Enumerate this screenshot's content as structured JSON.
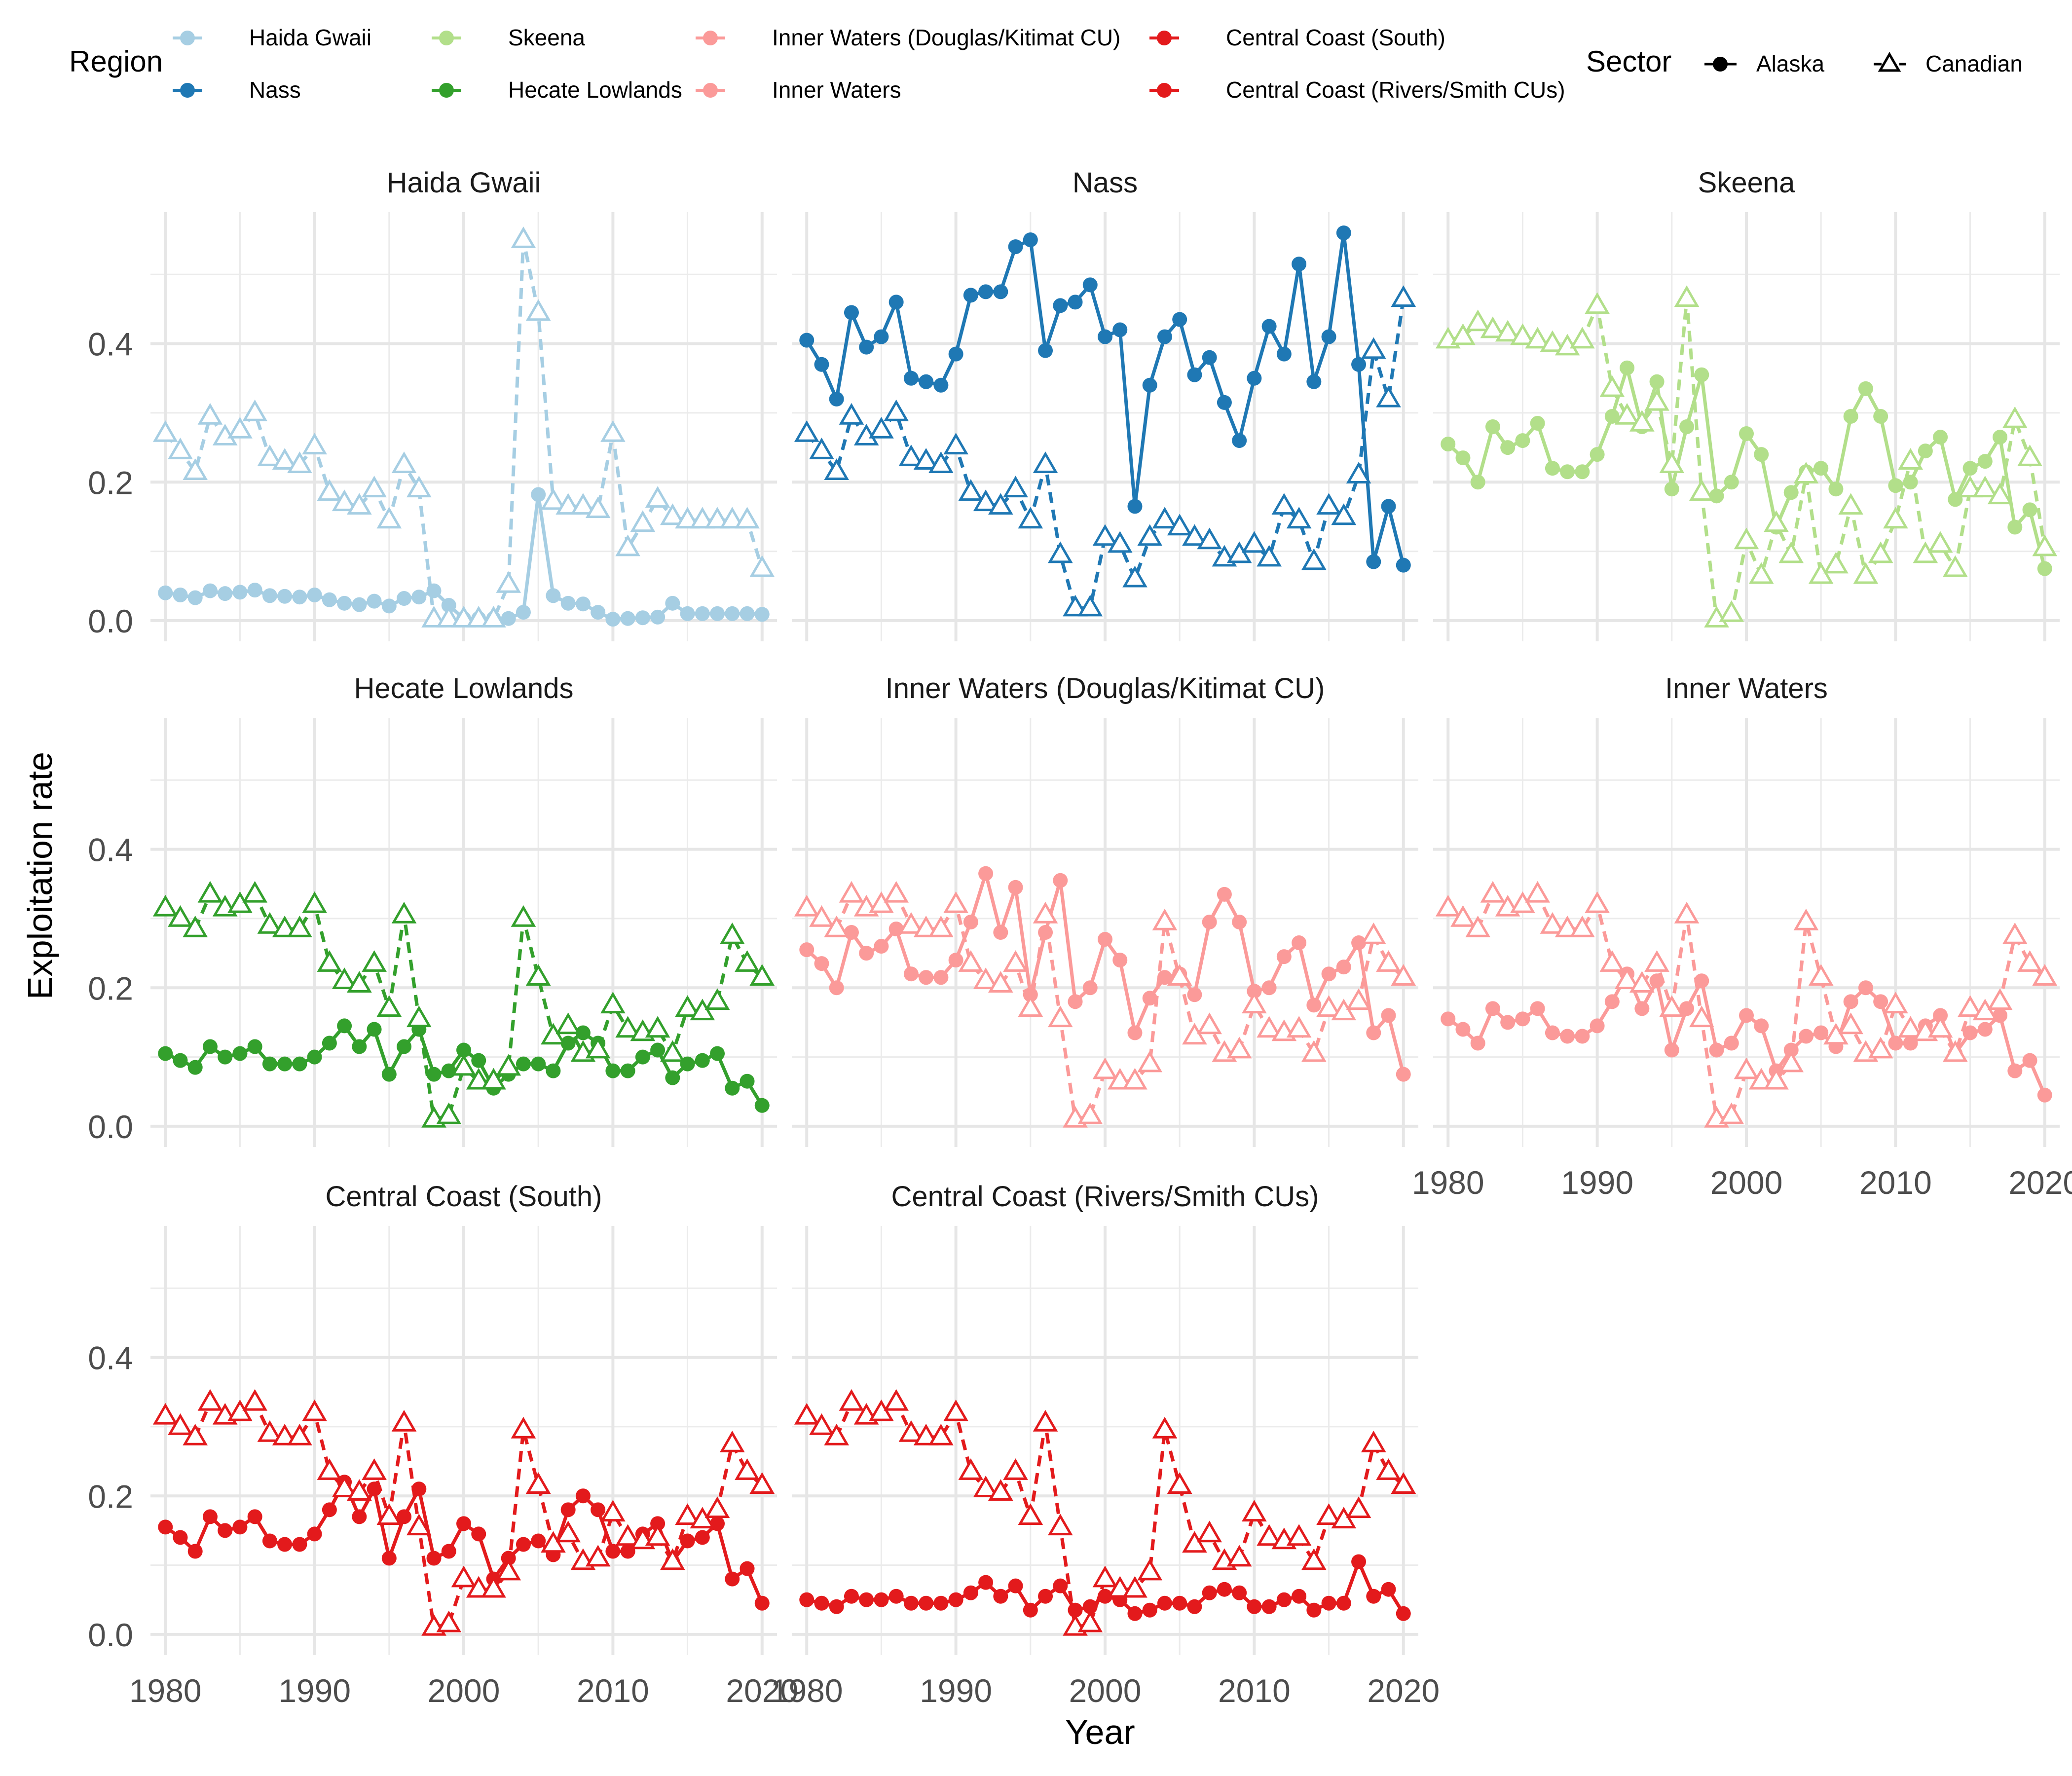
{
  "chart_data": {
    "type": "line",
    "title": "",
    "xlabel": "Year",
    "ylabel": "Exploitation rate",
    "xlim": [
      1979,
      2021
    ],
    "ylim": [
      -0.03,
      0.59
    ],
    "xticks": [
      1980,
      1990,
      2000,
      2010,
      2020
    ],
    "yticks": [
      0.0,
      0.2,
      0.4
    ],
    "yticks_labels": [
      "0.0",
      "0.2",
      "0.4"
    ],
    "grid": true,
    "legend_placement": "top",
    "legend": {
      "region_title": "Region",
      "sector_title": "Sector",
      "regions": [
        {
          "name": "Haida Gwaii",
          "color": "#A6CEE3"
        },
        {
          "name": "Nass",
          "color": "#1F78B4"
        },
        {
          "name": "Skeena",
          "color": "#B2DF8A"
        },
        {
          "name": "Hecate Lowlands",
          "color": "#33A02C"
        },
        {
          "name": "Inner Waters (Douglas/Kitimat CU)",
          "color": "#FB9A99"
        },
        {
          "name": "Inner Waters",
          "color": "#FB9A99"
        },
        {
          "name": "Central Coast (South)",
          "color": "#E31A1C"
        },
        {
          "name": "Central Coast (Rivers/Smith CUs)",
          "color": "#E31A1C"
        }
      ],
      "sectors": [
        {
          "name": "Alaska",
          "shape": "circle",
          "line": "solid"
        },
        {
          "name": "Canadian",
          "shape": "triangle",
          "line": "dashed"
        }
      ]
    },
    "years": [
      1980,
      1981,
      1982,
      1983,
      1984,
      1985,
      1986,
      1987,
      1988,
      1989,
      1990,
      1991,
      1992,
      1993,
      1994,
      1995,
      1996,
      1997,
      1998,
      1999,
      2000,
      2001,
      2002,
      2003,
      2004,
      2005,
      2006,
      2007,
      2008,
      2009,
      2010,
      2011,
      2012,
      2013,
      2014,
      2015,
      2016,
      2017,
      2018,
      2019,
      2020
    ],
    "panels": [
      {
        "region": "Haida Gwaii",
        "color": "#A6CEE3",
        "series": [
          {
            "name": "Alaska",
            "values": [
              0.04,
              0.037,
              0.033,
              0.043,
              0.039,
              0.041,
              0.044,
              0.036,
              0.035,
              0.034,
              0.037,
              0.03,
              0.025,
              0.023,
              0.028,
              0.021,
              0.032,
              0.034,
              0.043,
              0.022,
              0.003,
              0.003,
              0.003,
              0.003,
              0.012,
              0.182,
              0.036,
              0.025,
              0.024,
              0.012,
              0.002,
              0.003,
              0.004,
              0.005,
              0.025,
              0.01,
              0.01,
              0.01,
              0.01,
              0.01,
              0.009
            ]
          },
          {
            "name": "Canadian",
            "values": [
              0.27,
              0.245,
              0.215,
              0.295,
              0.265,
              0.275,
              0.3,
              0.235,
              0.23,
              0.225,
              0.252,
              0.185,
              0.17,
              0.165,
              0.19,
              0.145,
              0.225,
              0.19,
              0.002,
              0.002,
              0.002,
              0.002,
              0.002,
              0.052,
              0.55,
              0.445,
              0.172,
              0.165,
              0.165,
              0.16,
              0.27,
              0.105,
              0.14,
              0.175,
              0.15,
              0.145,
              0.145,
              0.145,
              0.145,
              0.145,
              0.075
            ]
          }
        ]
      },
      {
        "region": "Nass",
        "color": "#1F78B4",
        "series": [
          {
            "name": "Alaska",
            "values": [
              0.405,
              0.37,
              0.32,
              0.445,
              0.395,
              0.41,
              0.46,
              0.35,
              0.345,
              0.34,
              0.385,
              0.47,
              0.475,
              0.475,
              0.54,
              0.55,
              0.39,
              0.455,
              0.46,
              0.485,
              0.41,
              0.42,
              0.165,
              0.34,
              0.41,
              0.435,
              0.355,
              0.38,
              0.315,
              0.26,
              0.35,
              0.425,
              0.385,
              0.515,
              0.345,
              0.41,
              0.56,
              0.37,
              0.085,
              0.165,
              0.08
            ]
          },
          {
            "name": "Canadian",
            "values": [
              0.27,
              0.245,
              0.215,
              0.295,
              0.265,
              0.275,
              0.3,
              0.235,
              0.23,
              0.225,
              0.252,
              0.185,
              0.17,
              0.165,
              0.19,
              0.145,
              0.225,
              0.095,
              0.018,
              0.018,
              0.12,
              0.11,
              0.06,
              0.12,
              0.145,
              0.135,
              0.12,
              0.115,
              0.09,
              0.095,
              0.11,
              0.09,
              0.165,
              0.145,
              0.085,
              0.165,
              0.15,
              0.21,
              0.39,
              0.32,
              0.465
            ]
          }
        ]
      },
      {
        "region": "Skeena",
        "color": "#B2DF8A",
        "series": [
          {
            "name": "Alaska",
            "values": [
              0.255,
              0.235,
              0.2,
              0.28,
              0.25,
              0.26,
              0.285,
              0.22,
              0.215,
              0.215,
              0.24,
              0.295,
              0.365,
              0.28,
              0.345,
              0.19,
              0.28,
              0.355,
              0.18,
              0.2,
              0.27,
              0.24,
              0.135,
              0.185,
              0.215,
              0.22,
              0.19,
              0.295,
              0.335,
              0.295,
              0.195,
              0.2,
              0.245,
              0.265,
              0.175,
              0.22,
              0.23,
              0.265,
              0.135,
              0.16,
              0.075
            ]
          },
          {
            "name": "Canadian",
            "values": [
              0.405,
              0.41,
              0.43,
              0.42,
              0.415,
              0.41,
              0.405,
              0.4,
              0.395,
              0.405,
              0.455,
              0.335,
              0.295,
              0.285,
              0.315,
              0.225,
              0.465,
              0.185,
              0.002,
              0.01,
              0.115,
              0.065,
              0.14,
              0.095,
              0.21,
              0.065,
              0.08,
              0.165,
              0.065,
              0.095,
              0.145,
              0.23,
              0.095,
              0.11,
              0.075,
              0.19,
              0.19,
              0.18,
              0.29,
              0.235,
              0.105
            ]
          }
        ]
      },
      {
        "region": "Hecate Lowlands",
        "color": "#33A02C",
        "series": [
          {
            "name": "Alaska",
            "values": [
              0.105,
              0.095,
              0.085,
              0.115,
              0.1,
              0.105,
              0.115,
              0.09,
              0.09,
              0.09,
              0.1,
              0.12,
              0.145,
              0.115,
              0.14,
              0.075,
              0.115,
              0.14,
              0.075,
              0.08,
              0.11,
              0.095,
              0.055,
              0.075,
              0.09,
              0.09,
              0.08,
              0.12,
              0.135,
              0.12,
              0.08,
              0.08,
              0.1,
              0.11,
              0.07,
              0.09,
              0.095,
              0.105,
              0.055,
              0.065,
              0.03
            ]
          },
          {
            "name": "Canadian",
            "values": [
              0.315,
              0.3,
              0.285,
              0.335,
              0.315,
              0.32,
              0.335,
              0.29,
              0.285,
              0.285,
              0.32,
              0.235,
              0.21,
              0.205,
              0.235,
              0.17,
              0.305,
              0.155,
              0.01,
              0.015,
              0.085,
              0.065,
              0.065,
              0.085,
              0.3,
              0.215,
              0.13,
              0.145,
              0.105,
              0.11,
              0.175,
              0.14,
              0.135,
              0.14,
              0.105,
              0.17,
              0.165,
              0.18,
              0.275,
              0.235,
              0.215
            ]
          }
        ]
      },
      {
        "region": "Inner Waters (Douglas/Kitimat CU)",
        "color": "#FB9A99",
        "series": [
          {
            "name": "Alaska",
            "values": [
              0.255,
              0.235,
              0.2,
              0.28,
              0.25,
              0.26,
              0.285,
              0.22,
              0.215,
              0.215,
              0.24,
              0.295,
              0.365,
              0.28,
              0.345,
              0.19,
              0.28,
              0.355,
              0.18,
              0.2,
              0.27,
              0.24,
              0.135,
              0.185,
              0.215,
              0.22,
              0.19,
              0.295,
              0.335,
              0.295,
              0.195,
              0.2,
              0.245,
              0.265,
              0.175,
              0.22,
              0.23,
              0.265,
              0.135,
              0.16,
              0.075
            ]
          },
          {
            "name": "Canadian",
            "values": [
              0.315,
              0.3,
              0.285,
              0.335,
              0.315,
              0.32,
              0.335,
              0.29,
              0.285,
              0.285,
              0.32,
              0.235,
              0.21,
              0.205,
              0.235,
              0.17,
              0.305,
              0.155,
              0.01,
              0.015,
              0.08,
              0.065,
              0.065,
              0.09,
              0.295,
              0.215,
              0.13,
              0.145,
              0.105,
              0.11,
              0.175,
              0.14,
              0.135,
              0.14,
              0.105,
              0.17,
              0.165,
              0.18,
              0.275,
              0.235,
              0.215
            ]
          }
        ]
      },
      {
        "region": "Inner Waters",
        "color": "#FB9A99",
        "series": [
          {
            "name": "Alaska",
            "values": [
              0.155,
              0.14,
              0.12,
              0.17,
              0.15,
              0.155,
              0.17,
              0.135,
              0.13,
              0.13,
              0.145,
              0.18,
              0.22,
              0.17,
              0.21,
              0.11,
              0.17,
              0.21,
              0.11,
              0.12,
              0.16,
              0.145,
              0.08,
              0.11,
              0.13,
              0.135,
              0.115,
              0.18,
              0.2,
              0.18,
              0.12,
              0.12,
              0.145,
              0.16,
              0.105,
              0.135,
              0.14,
              0.16,
              0.08,
              0.095,
              0.045
            ]
          },
          {
            "name": "Canadian",
            "values": [
              0.315,
              0.3,
              0.285,
              0.335,
              0.315,
              0.32,
              0.335,
              0.29,
              0.285,
              0.285,
              0.32,
              0.235,
              0.21,
              0.205,
              0.235,
              0.17,
              0.305,
              0.155,
              0.01,
              0.015,
              0.08,
              0.065,
              0.065,
              0.09,
              0.295,
              0.215,
              0.13,
              0.145,
              0.105,
              0.11,
              0.175,
              0.14,
              0.135,
              0.14,
              0.105,
              0.17,
              0.165,
              0.18,
              0.275,
              0.235,
              0.215
            ]
          }
        ]
      },
      {
        "region": "Central Coast (South)",
        "color": "#E31A1C",
        "series": [
          {
            "name": "Alaska",
            "values": [
              0.155,
              0.14,
              0.12,
              0.17,
              0.15,
              0.155,
              0.17,
              0.135,
              0.13,
              0.13,
              0.145,
              0.18,
              0.22,
              0.17,
              0.21,
              0.11,
              0.17,
              0.21,
              0.11,
              0.12,
              0.16,
              0.145,
              0.08,
              0.11,
              0.13,
              0.135,
              0.115,
              0.18,
              0.2,
              0.18,
              0.12,
              0.12,
              0.145,
              0.16,
              0.105,
              0.135,
              0.14,
              0.16,
              0.08,
              0.095,
              0.045
            ]
          },
          {
            "name": "Canadian",
            "values": [
              0.315,
              0.3,
              0.285,
              0.335,
              0.315,
              0.32,
              0.335,
              0.29,
              0.285,
              0.285,
              0.32,
              0.235,
              0.21,
              0.205,
              0.235,
              0.17,
              0.305,
              0.155,
              0.01,
              0.015,
              0.08,
              0.065,
              0.065,
              0.09,
              0.295,
              0.215,
              0.13,
              0.145,
              0.105,
              0.11,
              0.175,
              0.14,
              0.135,
              0.14,
              0.105,
              0.17,
              0.165,
              0.18,
              0.275,
              0.235,
              0.215
            ]
          }
        ]
      },
      {
        "region": "Central Coast (Rivers/Smith CUs)",
        "color": "#E31A1C",
        "series": [
          {
            "name": "Alaska",
            "values": [
              0.05,
              0.045,
              0.04,
              0.055,
              0.05,
              0.05,
              0.055,
              0.045,
              0.045,
              0.045,
              0.05,
              0.06,
              0.075,
              0.055,
              0.07,
              0.035,
              0.055,
              0.07,
              0.035,
              0.04,
              0.055,
              0.05,
              0.03,
              0.035,
              0.045,
              0.045,
              0.04,
              0.06,
              0.065,
              0.06,
              0.04,
              0.04,
              0.05,
              0.055,
              0.035,
              0.045,
              0.045,
              0.105,
              0.055,
              0.065,
              0.03
            ]
          },
          {
            "name": "Canadian",
            "values": [
              0.315,
              0.3,
              0.285,
              0.335,
              0.315,
              0.32,
              0.335,
              0.29,
              0.285,
              0.285,
              0.32,
              0.235,
              0.21,
              0.205,
              0.235,
              0.17,
              0.305,
              0.155,
              0.01,
              0.015,
              0.08,
              0.065,
              0.065,
              0.09,
              0.295,
              0.215,
              0.13,
              0.145,
              0.105,
              0.11,
              0.175,
              0.14,
              0.135,
              0.14,
              0.105,
              0.17,
              0.165,
              0.18,
              0.275,
              0.235,
              0.215
            ]
          }
        ]
      }
    ]
  }
}
